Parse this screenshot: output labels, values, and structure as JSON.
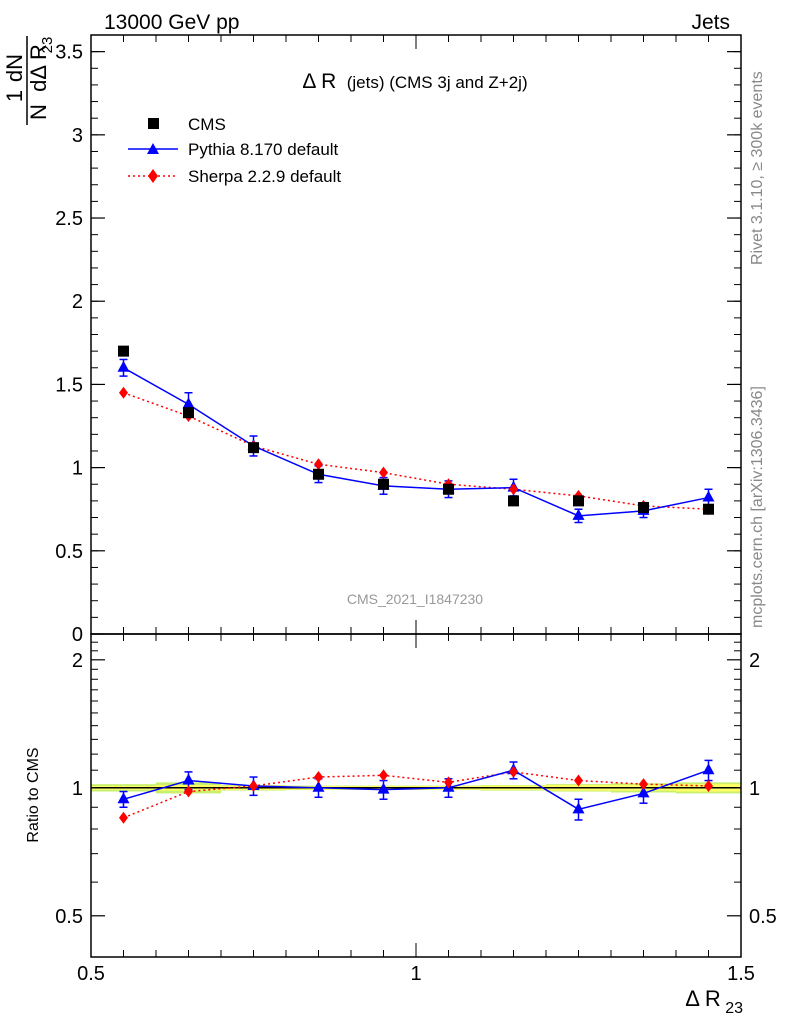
{
  "header": {
    "energy_label": "13000 GeV pp",
    "process_label": "Jets",
    "right_label_top": "Rivet 3.1.10, ≥ 300k events",
    "right_label_bottom": "mcplots.cern.ch [arXiv:1306.3436]",
    "watermark": "CMS_2021_I1847230"
  },
  "colors": {
    "cms": "#000000",
    "pythia": "#0000ff",
    "sherpa": "#ff0000",
    "band_inner": "#ffff66",
    "band_outer": "#c8f06e"
  },
  "chart_data": [
    {
      "type": "scatter",
      "title": "Δ R (jets) (CMS 3j and Z+2j)",
      "title_main": "Δ R",
      "title_sub": "(jets) (CMS 3j and Z+2j)",
      "ylabel_num": "1",
      "ylabel_num2": "dN",
      "ylabel_den": "N",
      "ylabel_den2": "dΔ R",
      "ylabel_den_sub": "23",
      "xlim": [
        0.5,
        1.5
      ],
      "ylim": [
        0,
        3.6
      ],
      "yticks": [
        "0",
        "0.5",
        "1",
        "1.5",
        "2",
        "2.5",
        "3",
        "3.5"
      ],
      "legend_position": "top-left",
      "x": [
        0.55,
        0.65,
        0.75,
        0.85,
        0.95,
        1.05,
        1.15,
        1.25,
        1.35,
        1.45
      ],
      "series": [
        {
          "name": "CMS",
          "marker": "square",
          "values": [
            1.7,
            1.33,
            1.12,
            0.96,
            0.9,
            0.87,
            0.8,
            0.8,
            0.76,
            0.75
          ]
        },
        {
          "name": "Pythia 8.170 default",
          "marker": "triangle",
          "line": "solid",
          "values": [
            1.6,
            1.38,
            1.13,
            0.96,
            0.89,
            0.87,
            0.88,
            0.71,
            0.74,
            0.82
          ],
          "errors": [
            0.05,
            0.07,
            0.06,
            0.05,
            0.05,
            0.05,
            0.05,
            0.04,
            0.04,
            0.05
          ]
        },
        {
          "name": "Sherpa 2.2.9 default",
          "marker": "diamond",
          "line": "dotted",
          "values": [
            1.45,
            1.31,
            1.13,
            1.02,
            0.97,
            0.9,
            0.87,
            0.83,
            0.77,
            0.75
          ],
          "errors": [
            0.01,
            0.01,
            0.01,
            0.01,
            0.01,
            0.01,
            0.01,
            0.01,
            0.01,
            0.01
          ]
        }
      ]
    },
    {
      "type": "scatter",
      "title": "",
      "ylabel": "Ratio to CMS",
      "xlabel": "Δ R",
      "xlabel_sub": "23",
      "xlim": [
        0.5,
        1.5
      ],
      "ylim": [
        0.4,
        2.3
      ],
      "xticks": [
        "0.5",
        "1",
        "1.5"
      ],
      "yticks": [
        "0.5",
        "1",
        "2"
      ],
      "x": [
        0.55,
        0.65,
        0.75,
        0.85,
        0.95,
        1.05,
        1.15,
        1.25,
        1.35,
        1.45
      ],
      "band_edges": [
        0.5,
        0.6,
        0.7,
        0.8,
        0.9,
        1.0,
        1.1,
        1.2,
        1.3,
        1.4,
        1.5
      ],
      "band_inner_halfwidth": [
        0.01,
        0.015,
        0.012,
        0.01,
        0.01,
        0.01,
        0.012,
        0.015,
        0.015,
        0.02
      ],
      "band_outer_halfwidth": [
        0.02,
        0.03,
        0.015,
        0.012,
        0.012,
        0.012,
        0.015,
        0.02,
        0.025,
        0.03
      ],
      "series": [
        {
          "name": "Pythia 8.170 default",
          "values": [
            0.94,
            1.04,
            1.01,
            1.0,
            0.99,
            1.0,
            1.1,
            0.89,
            0.97,
            1.1
          ],
          "errors": [
            0.04,
            0.05,
            0.05,
            0.05,
            0.05,
            0.05,
            0.05,
            0.05,
            0.05,
            0.06
          ]
        },
        {
          "name": "Sherpa 2.2.9 default",
          "values": [
            0.85,
            0.98,
            1.01,
            1.06,
            1.07,
            1.03,
            1.09,
            1.04,
            1.02,
            1.01
          ],
          "errors": [
            0.01,
            0.01,
            0.01,
            0.01,
            0.01,
            0.01,
            0.01,
            0.01,
            0.01,
            0.01
          ]
        }
      ]
    }
  ]
}
